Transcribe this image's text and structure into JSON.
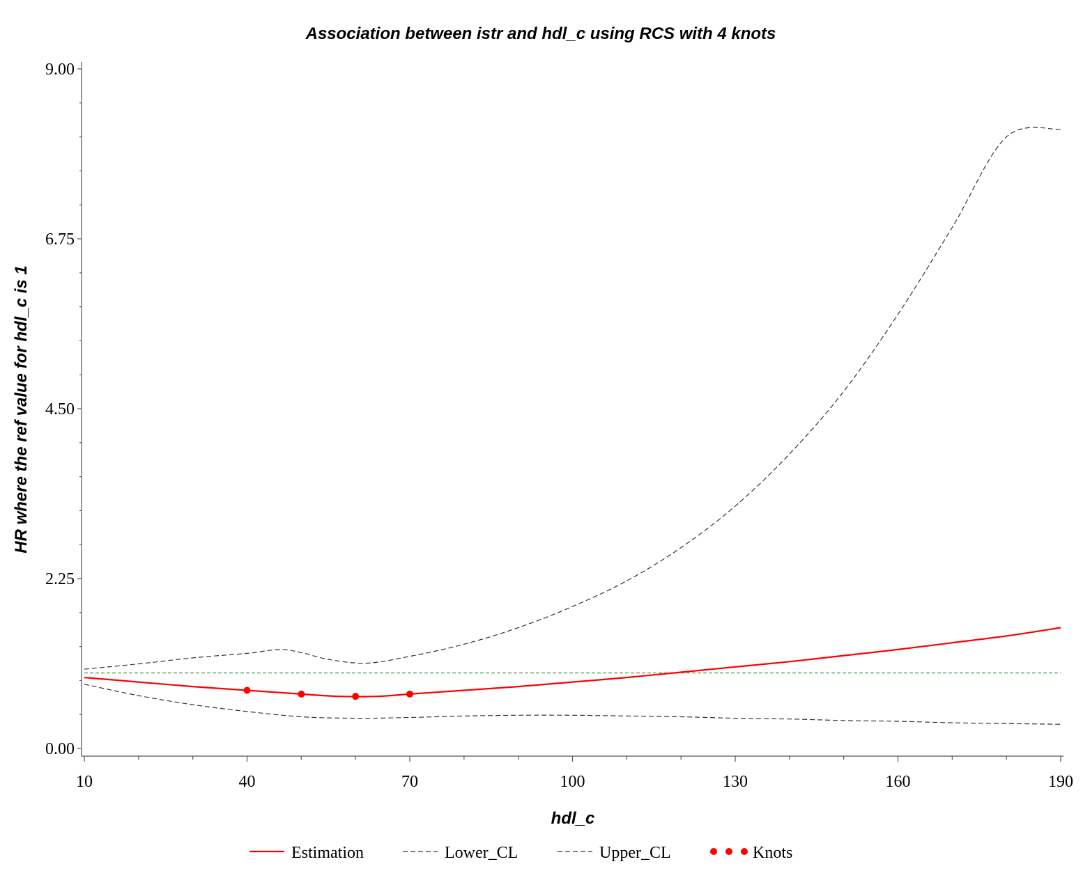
{
  "chart_data": {
    "type": "line",
    "title": "Association between istr and hdl_c using RCS with 4 knots",
    "xlabel": "hdl_c",
    "ylabel": "HR where the ref value for hdl_c is 1",
    "xlim": [
      10,
      190
    ],
    "ylim": [
      0,
      9
    ],
    "xticks": [
      10,
      40,
      70,
      100,
      130,
      160,
      190
    ],
    "xtick_labels": [
      "10",
      "40",
      "70",
      "100",
      "130",
      "160",
      "190"
    ],
    "yticks": [
      0,
      2.25,
      4.5,
      6.75,
      9
    ],
    "ytick_labels": [
      "0.00",
      "2.25",
      "4.50",
      "6.75",
      "9.00"
    ],
    "reference_line": {
      "y": 1.0,
      "color": "#6aa56a",
      "style": "dashed"
    },
    "series": [
      {
        "name": "Estimation",
        "color": "#ff0000",
        "style": "solid",
        "x": [
          10,
          20,
          30,
          40,
          50,
          57,
          64,
          70,
          80,
          90,
          100,
          110,
          120,
          130,
          140,
          150,
          160,
          170,
          180,
          190
        ],
        "y": [
          0.94,
          0.88,
          0.82,
          0.77,
          0.72,
          0.69,
          0.69,
          0.72,
          0.77,
          0.82,
          0.88,
          0.94,
          1.01,
          1.08,
          1.15,
          1.23,
          1.31,
          1.4,
          1.49,
          1.6
        ]
      },
      {
        "name": "Lower_CL",
        "color": "#333333",
        "style": "dashed",
        "x": [
          10,
          20,
          30,
          40,
          50,
          60,
          70,
          80,
          90,
          100,
          110,
          120,
          130,
          140,
          150,
          160,
          170,
          180,
          190
        ],
        "y": [
          0.85,
          0.7,
          0.58,
          0.49,
          0.42,
          0.4,
          0.41,
          0.43,
          0.44,
          0.44,
          0.43,
          0.42,
          0.4,
          0.39,
          0.37,
          0.36,
          0.34,
          0.33,
          0.32
        ]
      },
      {
        "name": "Upper_CL",
        "color": "#333333",
        "style": "dashed",
        "x": [
          10,
          20,
          30,
          40,
          46,
          50,
          55,
          62,
          70,
          80,
          90,
          100,
          110,
          120,
          130,
          140,
          150,
          160,
          170,
          180,
          190
        ],
        "y": [
          1.05,
          1.12,
          1.2,
          1.26,
          1.31,
          1.27,
          1.18,
          1.13,
          1.22,
          1.38,
          1.6,
          1.88,
          2.22,
          2.66,
          3.21,
          3.9,
          4.73,
          5.75,
          6.9,
          8.1,
          8.2
        ]
      }
    ],
    "knots": {
      "name": "Knots",
      "color": "#ff0000",
      "x": [
        40,
        50,
        60,
        70
      ],
      "y": [
        0.77,
        0.72,
        0.69,
        0.72
      ]
    },
    "legend": {
      "position": "bottom",
      "entries": [
        "Estimation",
        "Lower_CL",
        "Upper_CL",
        "Knots"
      ]
    },
    "grid": false
  }
}
